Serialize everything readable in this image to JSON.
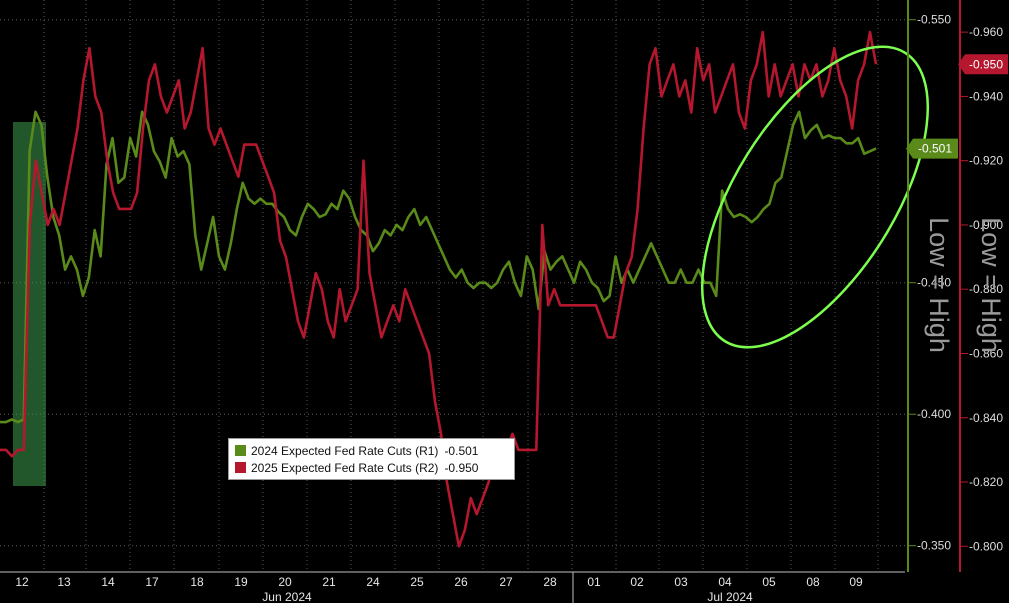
{
  "chart_data": {
    "type": "line",
    "background": "#000000",
    "x_ticks": [
      "12",
      "13",
      "14",
      "17",
      "18",
      "19",
      "20",
      "21",
      "24",
      "25",
      "26",
      "27",
      "28",
      "01",
      "02",
      "03",
      "04",
      "05",
      "08",
      "09"
    ],
    "month_labels": [
      "Jun 2024",
      "Jul 2024"
    ],
    "series": [
      {
        "name": "2024 Expected Fed Rate Cuts (R1)",
        "axis": "R1",
        "color": "#5a8a1a",
        "last_value": "-0.501",
        "values": [
          -0.397,
          -0.397,
          -0.398,
          -0.397,
          -0.398,
          -0.5,
          -0.515,
          -0.51,
          -0.49,
          -0.475,
          -0.468,
          -0.455,
          -0.46,
          -0.455,
          -0.445,
          -0.452,
          -0.47,
          -0.46,
          -0.495,
          -0.505,
          -0.488,
          -0.49,
          -0.505,
          -0.498,
          -0.515,
          -0.51,
          -0.5,
          -0.496,
          -0.49,
          -0.505,
          -0.498,
          -0.5,
          -0.495,
          -0.468,
          -0.455,
          -0.465,
          -0.475,
          -0.46,
          -0.455,
          -0.465,
          -0.478,
          -0.488,
          -0.482,
          -0.48,
          -0.482,
          -0.48,
          -0.48,
          -0.477,
          -0.475,
          -0.47,
          -0.468,
          -0.475,
          -0.48,
          -0.478,
          -0.475,
          -0.476,
          -0.48,
          -0.478,
          -0.485,
          -0.482,
          -0.475,
          -0.47,
          -0.468,
          -0.462,
          -0.465,
          -0.47,
          -0.468,
          -0.472,
          -0.47,
          -0.475,
          -0.478,
          -0.472,
          -0.475,
          -0.47,
          -0.465,
          -0.46,
          -0.455,
          -0.452,
          -0.455,
          -0.45,
          -0.448,
          -0.45,
          -0.45,
          -0.448,
          -0.45,
          -0.455,
          -0.458,
          -0.45,
          -0.445,
          -0.46,
          -0.455,
          -0.44,
          -0.462,
          -0.455,
          -0.458,
          -0.46,
          -0.455,
          -0.45,
          -0.458,
          -0.455,
          -0.45,
          -0.448,
          -0.443,
          -0.445,
          -0.46,
          -0.45,
          -0.455,
          -0.45,
          -0.455,
          -0.46,
          -0.465,
          -0.46,
          -0.455,
          -0.45,
          -0.45,
          -0.455,
          -0.45,
          -0.45,
          -0.455,
          -0.45,
          -0.45,
          -0.445,
          -0.485,
          -0.478,
          -0.475,
          -0.476,
          -0.475,
          -0.473,
          -0.475,
          -0.478,
          -0.48,
          -0.488,
          -0.49,
          -0.5,
          -0.51,
          -0.515,
          -0.505,
          -0.508,
          -0.51,
          -0.505,
          -0.506,
          -0.505,
          -0.505,
          -0.503,
          -0.503,
          -0.505,
          -0.499,
          -0.5,
          -0.501
        ]
      },
      {
        "name": "2025 Expected Fed Rate Cuts (R2)",
        "axis": "R2",
        "color": "#b5182e",
        "last_value": "-0.950",
        "values": [
          -0.83,
          -0.83,
          -0.828,
          -0.83,
          -0.83,
          -0.9,
          -0.92,
          -0.91,
          -0.9,
          -0.905,
          -0.9,
          -0.91,
          -0.92,
          -0.93,
          -0.945,
          -0.955,
          -0.94,
          -0.935,
          -0.92,
          -0.91,
          -0.905,
          -0.905,
          -0.905,
          -0.91,
          -0.93,
          -0.945,
          -0.95,
          -0.94,
          -0.935,
          -0.94,
          -0.945,
          -0.93,
          -0.935,
          -0.945,
          -0.955,
          -0.93,
          -0.925,
          -0.93,
          -0.925,
          -0.92,
          -0.915,
          -0.925,
          -0.925,
          -0.925,
          -0.92,
          -0.915,
          -0.91,
          -0.895,
          -0.89,
          -0.88,
          -0.87,
          -0.865,
          -0.875,
          -0.885,
          -0.88,
          -0.87,
          -0.865,
          -0.88,
          -0.87,
          -0.875,
          -0.88,
          -0.92,
          -0.885,
          -0.875,
          -0.865,
          -0.87,
          -0.875,
          -0.87,
          -0.88,
          -0.875,
          -0.87,
          -0.865,
          -0.86,
          -0.845,
          -0.835,
          -0.82,
          -0.81,
          -0.8,
          -0.805,
          -0.815,
          -0.81,
          -0.815,
          -0.82,
          -0.83,
          -0.83,
          -0.83,
          -0.835,
          -0.83,
          -0.83,
          -0.83,
          -0.83,
          -0.9,
          -0.875,
          -0.88,
          -0.875,
          -0.875,
          -0.875,
          -0.875,
          -0.875,
          -0.875,
          -0.875,
          -0.87,
          -0.865,
          -0.865,
          -0.875,
          -0.885,
          -0.89,
          -0.905,
          -0.93,
          -0.95,
          -0.955,
          -0.94,
          -0.945,
          -0.95,
          -0.94,
          -0.945,
          -0.935,
          -0.955,
          -0.945,
          -0.95,
          -0.935,
          -0.94,
          -0.945,
          -0.95,
          -0.935,
          -0.93,
          -0.945,
          -0.95,
          -0.96,
          -0.94,
          -0.95,
          -0.94,
          -0.945,
          -0.95,
          -0.94,
          -0.95,
          -0.945,
          -0.95,
          -0.94,
          -0.945,
          -0.955,
          -0.945,
          -0.94,
          -0.93,
          -0.945,
          -0.95,
          -0.96,
          -0.95
        ]
      }
    ],
    "axes": {
      "R1": {
        "range": [
          -0.34,
          -0.5575
        ],
        "ticks": [
          "-0.550",
          "-0.450",
          "-0.400",
          "-0.350"
        ],
        "tick_values": [
          -0.55,
          -0.45,
          -0.4,
          -0.35
        ],
        "color": "#5a8a1a"
      },
      "R2": {
        "range": [
          -0.792,
          -0.97
        ],
        "ticks": [
          "-0.960",
          "-0.940",
          "-0.920",
          "-0.900",
          "-0.880",
          "-0.860",
          "-0.840",
          "-0.820",
          "-0.800"
        ],
        "tick_values": [
          -0.96,
          -0.94,
          -0.92,
          -0.9,
          -0.88,
          -0.86,
          -0.84,
          -0.82,
          -0.8
        ],
        "color": "#b5182e"
      }
    },
    "side_labels": {
      "r1": "Low = High",
      "r2": "Low = High"
    },
    "grid": true,
    "highlight_color": "#3d9e4d",
    "ellipse_color": "#7cff4e",
    "legend_position": "bottom-center"
  }
}
